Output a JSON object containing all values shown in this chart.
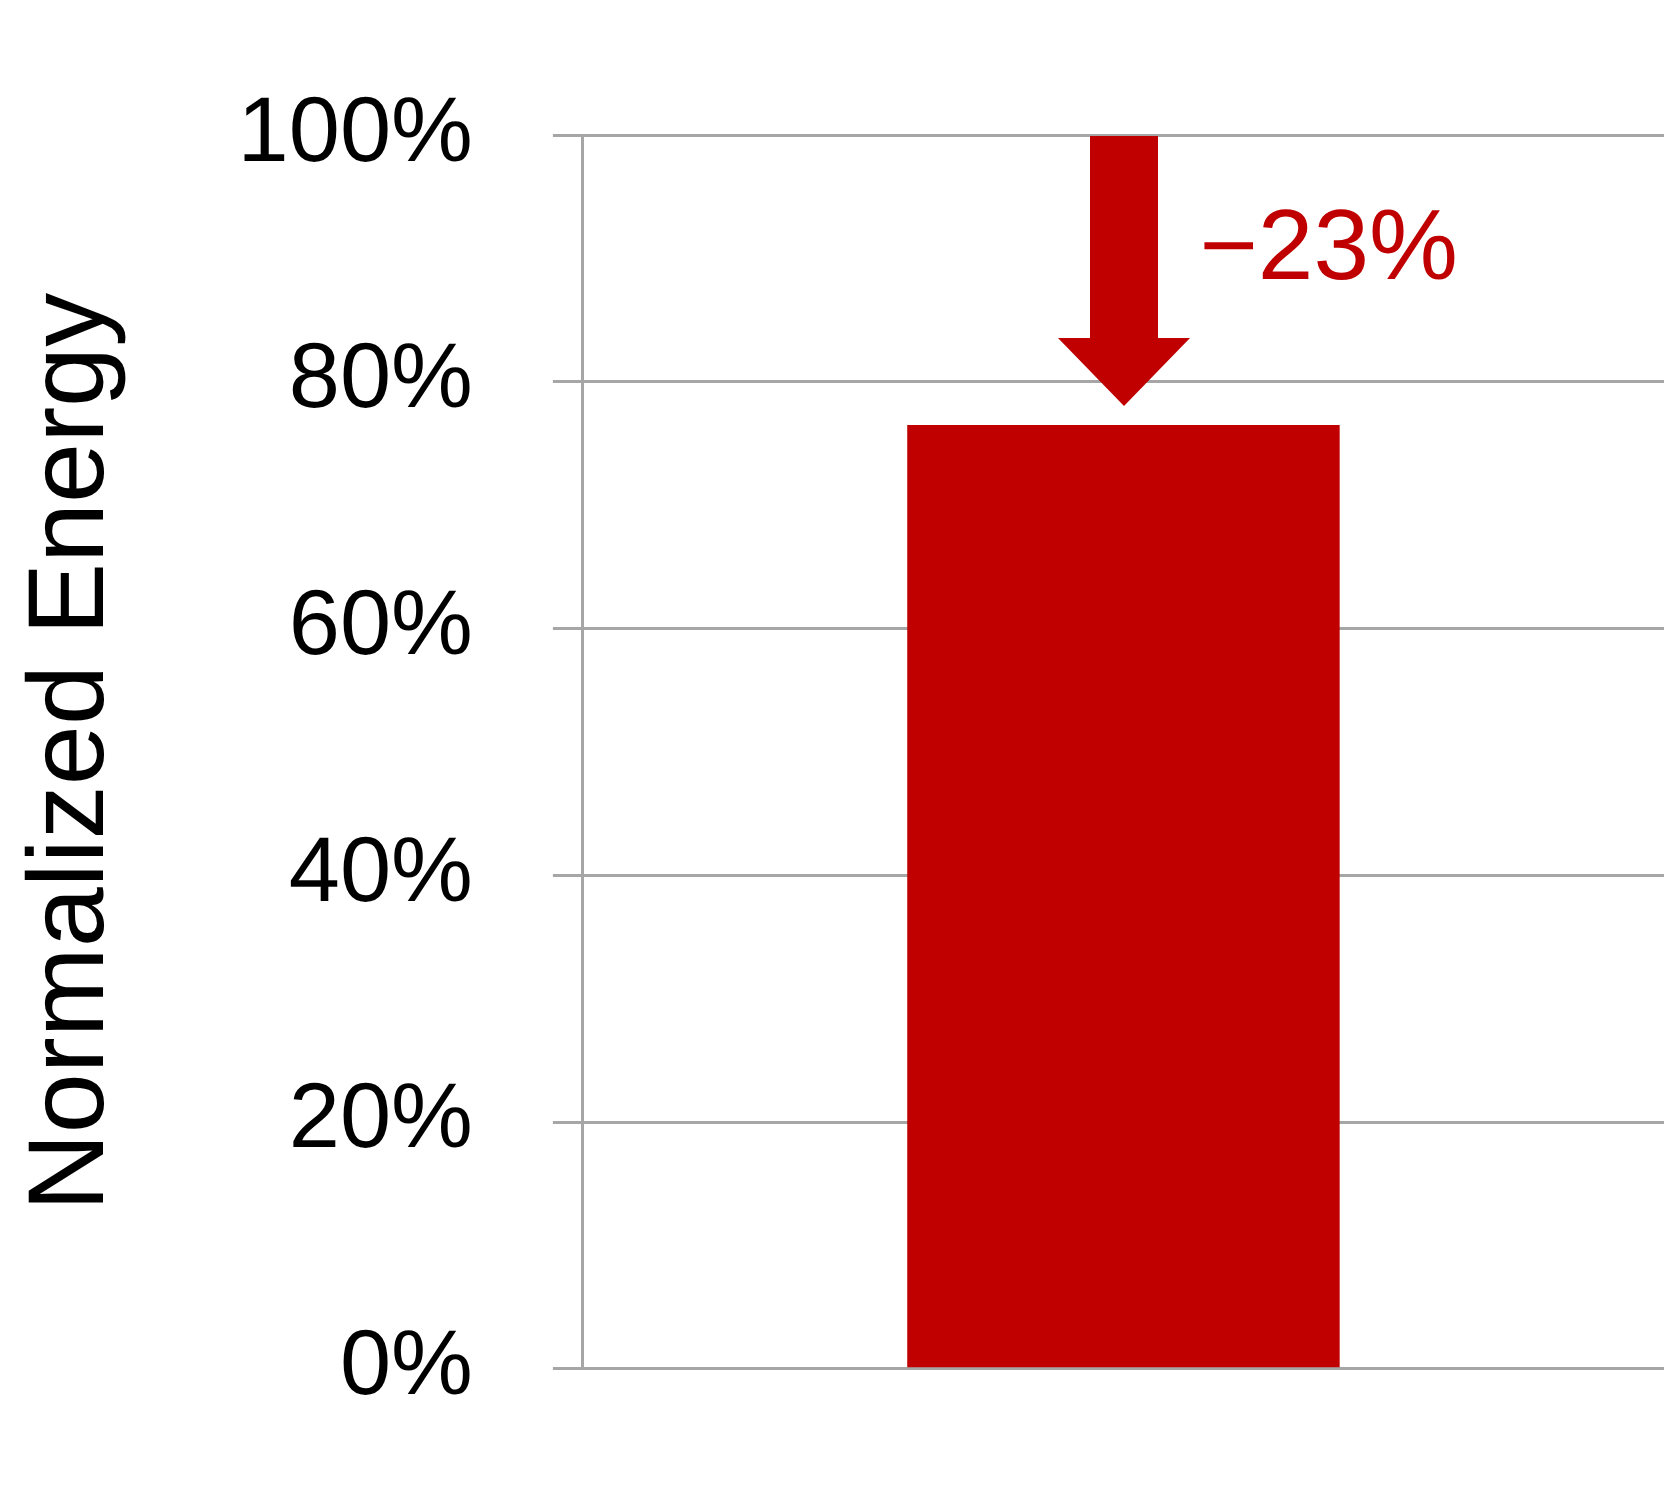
{
  "chart_data": {
    "type": "bar",
    "ylabel": "Normalized Energy",
    "categories": [
      null
    ],
    "values": [
      76.5
    ],
    "color": "#c00000",
    "ylim": [
      0,
      100
    ],
    "yticks": [
      {
        "value": 0,
        "label": "0%"
      },
      {
        "value": 20,
        "label": "20%"
      },
      {
        "value": 40,
        "label": "40%"
      },
      {
        "value": 60,
        "label": "60%"
      },
      {
        "value": 80,
        "label": "80%"
      },
      {
        "value": 100,
        "label": "100%"
      }
    ],
    "grid": "y",
    "annotations": [
      {
        "text": "−23%",
        "y": 76.5
      }
    ]
  }
}
